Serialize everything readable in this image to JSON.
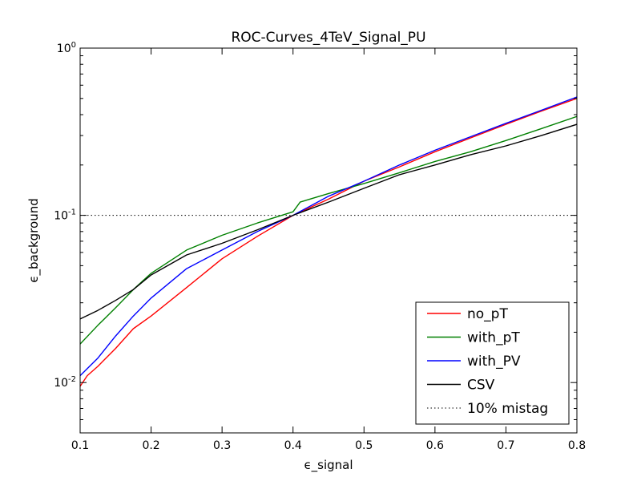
{
  "chart_data": {
    "type": "line",
    "title": "ROC-Curves_4TeV_Signal_PU",
    "xlabel": "ϵ_signal",
    "ylabel": "ϵ_background",
    "xlim": [
      0.1,
      0.8
    ],
    "ylim": [
      0.005,
      1.0
    ],
    "yscale": "log",
    "x_ticks": [
      {
        "value": 0.1,
        "label": "0.1"
      },
      {
        "value": 0.2,
        "label": "0.2"
      },
      {
        "value": 0.3,
        "label": "0.3"
      },
      {
        "value": 0.4,
        "label": "0.4"
      },
      {
        "value": 0.5,
        "label": "0.5"
      },
      {
        "value": 0.6,
        "label": "0.6"
      },
      {
        "value": 0.7,
        "label": "0.7"
      },
      {
        "value": 0.8,
        "label": "0.8"
      }
    ],
    "y_ticks": [
      {
        "value": 0.01,
        "base": "10",
        "exp": "-2"
      },
      {
        "value": 0.1,
        "base": "10",
        "exp": "-1"
      },
      {
        "value": 1.0,
        "base": "10",
        "exp": "0"
      }
    ],
    "legend_position": "bottom-right",
    "grid": false,
    "series": [
      {
        "name": "no_pT",
        "color": "#ff0000",
        "x": [
          0.1,
          0.11,
          0.125,
          0.15,
          0.175,
          0.2,
          0.25,
          0.3,
          0.35,
          0.4,
          0.45,
          0.5,
          0.55,
          0.6,
          0.65,
          0.7,
          0.75,
          0.8
        ],
        "y": [
          0.0095,
          0.011,
          0.0125,
          0.016,
          0.021,
          0.025,
          0.037,
          0.055,
          0.075,
          0.1,
          0.125,
          0.16,
          0.195,
          0.24,
          0.29,
          0.35,
          0.42,
          0.5
        ]
      },
      {
        "name": "with_pT",
        "color": "#008000",
        "x": [
          0.1,
          0.125,
          0.15,
          0.175,
          0.2,
          0.25,
          0.3,
          0.35,
          0.4,
          0.41,
          0.45,
          0.5,
          0.55,
          0.6,
          0.65,
          0.7,
          0.75,
          0.8
        ],
        "y": [
          0.017,
          0.022,
          0.028,
          0.036,
          0.045,
          0.062,
          0.076,
          0.09,
          0.105,
          0.12,
          0.135,
          0.155,
          0.18,
          0.21,
          0.24,
          0.28,
          0.33,
          0.39
        ]
      },
      {
        "name": "with_PV",
        "color": "#0000ff",
        "x": [
          0.1,
          0.125,
          0.15,
          0.175,
          0.2,
          0.25,
          0.3,
          0.35,
          0.4,
          0.45,
          0.5,
          0.55,
          0.6,
          0.65,
          0.7,
          0.75,
          0.8
        ],
        "y": [
          0.011,
          0.014,
          0.019,
          0.025,
          0.032,
          0.048,
          0.062,
          0.08,
          0.1,
          0.13,
          0.16,
          0.2,
          0.245,
          0.295,
          0.355,
          0.425,
          0.51
        ]
      },
      {
        "name": "CSV",
        "color": "#000000",
        "x": [
          0.1,
          0.125,
          0.15,
          0.175,
          0.2,
          0.25,
          0.3,
          0.35,
          0.4,
          0.45,
          0.5,
          0.55,
          0.6,
          0.65,
          0.7,
          0.75,
          0.8
        ],
        "y": [
          0.024,
          0.027,
          0.031,
          0.036,
          0.044,
          0.058,
          0.068,
          0.082,
          0.1,
          0.12,
          0.145,
          0.175,
          0.2,
          0.23,
          0.26,
          0.3,
          0.35
        ]
      }
    ],
    "reference_lines": [
      {
        "name": "10% mistag",
        "y": 0.1,
        "style": "dotted",
        "color": "#000000"
      }
    ]
  }
}
